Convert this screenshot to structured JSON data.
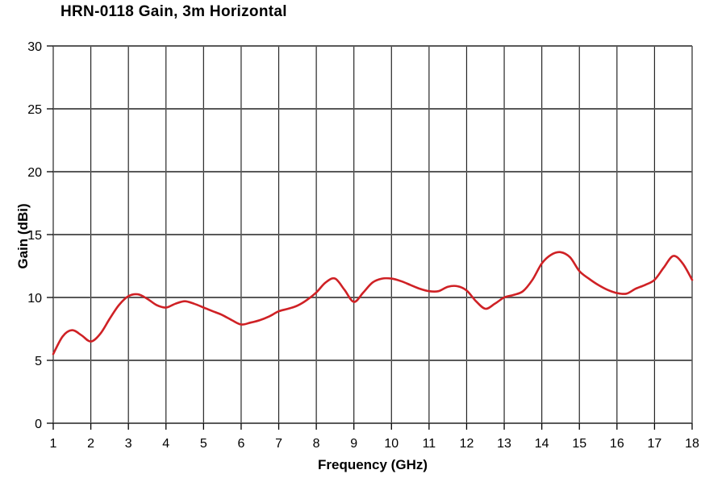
{
  "chart_data": {
    "type": "line",
    "title": "HRN-0118 Gain, 3m Horizontal",
    "xlabel": "Frequency (GHz)",
    "ylabel": "Gain (dBi)",
    "xlim": [
      1,
      18
    ],
    "ylim": [
      0,
      30
    ],
    "xticks": [
      1,
      2,
      3,
      4,
      5,
      6,
      7,
      8,
      9,
      10,
      11,
      12,
      13,
      14,
      15,
      16,
      17,
      18
    ],
    "yticks": [
      0,
      5,
      10,
      15,
      20,
      25,
      30
    ],
    "grid": "both",
    "legend_position": "none",
    "line_color": "#cf2125",
    "h_grid_color": "#595959",
    "v_grid_color": "#262626",
    "series": [
      {
        "name": "Gain",
        "x": [
          1.0,
          1.25,
          1.5,
          1.75,
          2.0,
          2.25,
          2.5,
          2.75,
          3.0,
          3.25,
          3.5,
          3.75,
          4.0,
          4.25,
          4.5,
          4.75,
          5.0,
          5.25,
          5.5,
          5.75,
          6.0,
          6.25,
          6.5,
          6.75,
          7.0,
          7.25,
          7.5,
          7.75,
          8.0,
          8.25,
          8.5,
          8.75,
          9.0,
          9.25,
          9.5,
          9.75,
          10.0,
          10.25,
          10.5,
          10.75,
          11.0,
          11.25,
          11.5,
          11.75,
          12.0,
          12.25,
          12.5,
          12.75,
          13.0,
          13.25,
          13.5,
          13.75,
          14.0,
          14.25,
          14.5,
          14.75,
          15.0,
          15.25,
          15.5,
          15.75,
          16.0,
          16.25,
          16.5,
          16.75,
          17.0,
          17.25,
          17.5,
          17.75,
          18.0
        ],
        "y": [
          5.5,
          6.9,
          7.4,
          7.0,
          6.5,
          7.1,
          8.3,
          9.4,
          10.1,
          10.25,
          9.9,
          9.4,
          9.2,
          9.5,
          9.7,
          9.5,
          9.2,
          8.9,
          8.6,
          8.2,
          7.85,
          8.0,
          8.2,
          8.5,
          8.9,
          9.1,
          9.35,
          9.8,
          10.4,
          11.2,
          11.5,
          10.6,
          9.65,
          10.4,
          11.2,
          11.5,
          11.5,
          11.3,
          11.0,
          10.7,
          10.5,
          10.5,
          10.85,
          10.9,
          10.55,
          9.7,
          9.1,
          9.5,
          10.0,
          10.2,
          10.5,
          11.4,
          12.7,
          13.4,
          13.6,
          13.2,
          12.1,
          11.5,
          11.0,
          10.6,
          10.35,
          10.3,
          10.7,
          11.0,
          11.4,
          12.4,
          13.3,
          12.7,
          11.4
        ]
      }
    ]
  }
}
